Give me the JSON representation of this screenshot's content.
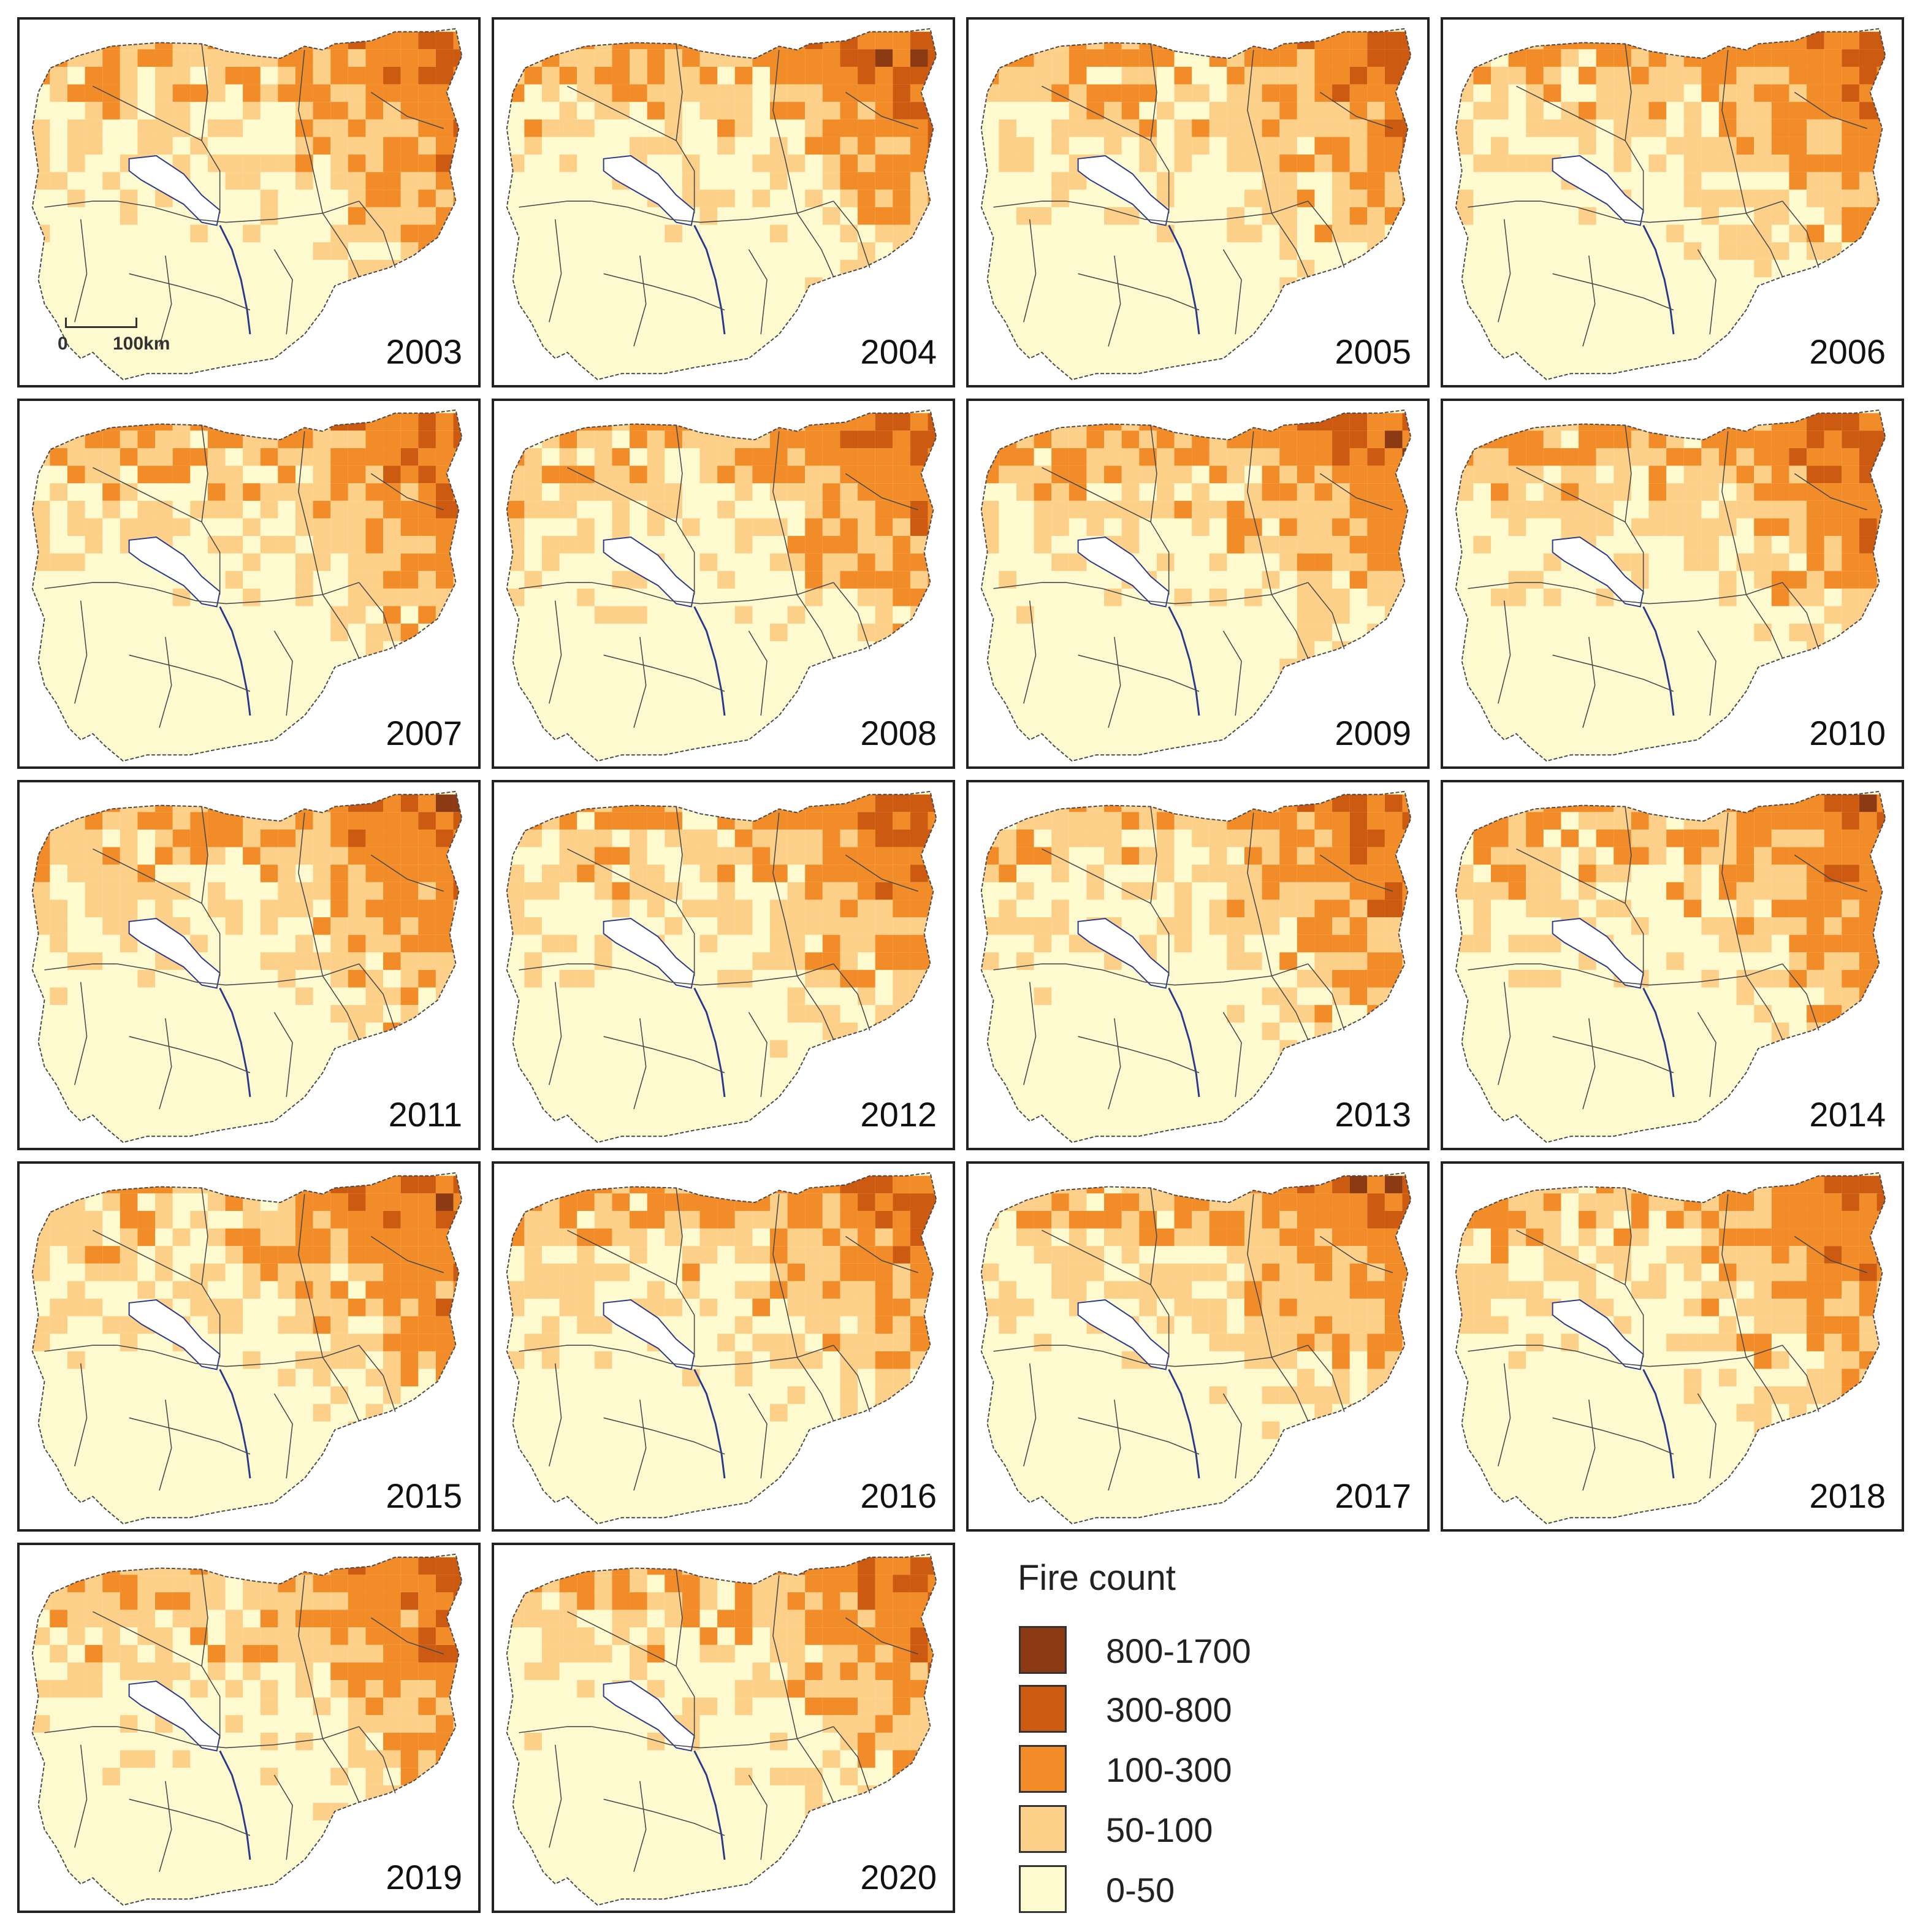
{
  "map": {
    "scale_bar": {
      "zero_label": "0",
      "distance_label": "100km"
    },
    "panels": [
      {
        "year": "2003"
      },
      {
        "year": "2004"
      },
      {
        "year": "2005"
      },
      {
        "year": "2006"
      },
      {
        "year": "2007"
      },
      {
        "year": "2008"
      },
      {
        "year": "2009"
      },
      {
        "year": "2010"
      },
      {
        "year": "2011"
      },
      {
        "year": "2012"
      },
      {
        "year": "2013"
      },
      {
        "year": "2014"
      },
      {
        "year": "2015"
      },
      {
        "year": "2016"
      },
      {
        "year": "2017"
      },
      {
        "year": "2018"
      },
      {
        "year": "2019"
      },
      {
        "year": "2020"
      }
    ]
  },
  "legend": {
    "title": "Fire count",
    "items": [
      {
        "label": "800-1700",
        "color": "#8b3a14"
      },
      {
        "label": "300-800",
        "color": "#cc5a10"
      },
      {
        "label": "100-300",
        "color": "#f28c28"
      },
      {
        "label": "50-100",
        "color": "#fdd08a"
      },
      {
        "label": "0-50",
        "color": "#fefad0"
      }
    ]
  },
  "colors": {
    "border_line": "#4a4a4a",
    "river": "#2a3a8a",
    "lake": "#ffffff"
  }
}
